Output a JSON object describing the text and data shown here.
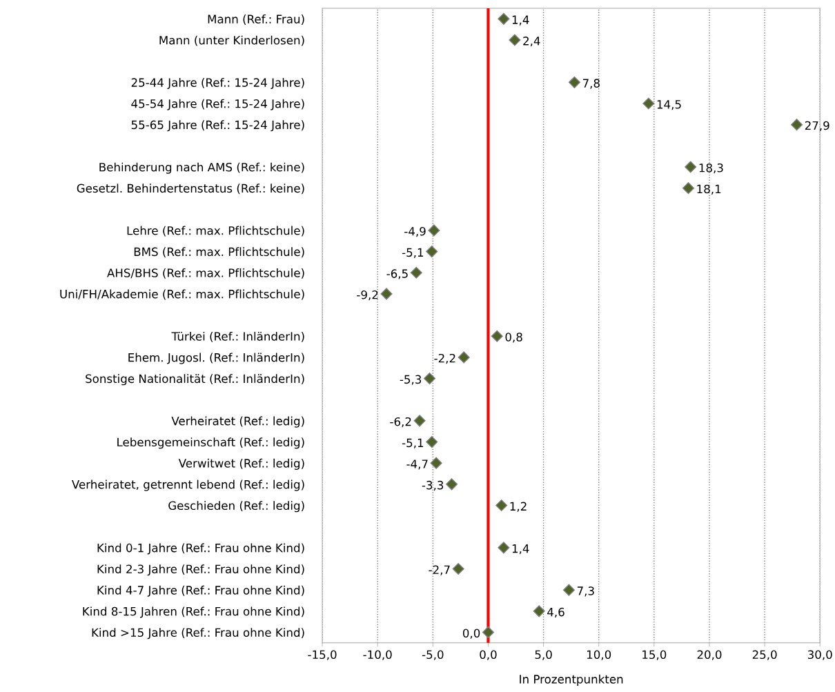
{
  "chart_data": {
    "type": "scatter",
    "orientation": "horizontal",
    "xlabel": "In Prozentpunkten",
    "categories": [
      "Mann (Ref.: Frau)",
      "Mann (unter Kinderlosen)",
      null,
      "25-44 Jahre (Ref.: 15-24 Jahre)",
      "45-54 Jahre (Ref.: 15-24 Jahre)",
      "55-65 Jahre (Ref.: 15-24 Jahre)",
      null,
      "Behinderung nach AMS (Ref.: keine)",
      "Gesetzl. Behindertenstatus (Ref.: keine)",
      null,
      "Lehre (Ref.: max. Pflichtschule)",
      "BMS (Ref.: max. Pflichtschule)",
      "AHS/BHS (Ref.: max. Pflichtschule)",
      "Uni/FH/Akademie (Ref.: max. Pflichtschule)",
      null,
      "Türkei (Ref.: InländerIn)",
      "Ehem. Jugosl. (Ref.: InländerIn)",
      "Sonstige Nationalität (Ref.: InländerIn)",
      null,
      "Verheiratet (Ref.: ledig)",
      "Lebensgemeinschaft (Ref.: ledig)",
      "Verwitwet (Ref.: ledig)",
      "Verheiratet, getrennt lebend (Ref.: ledig)",
      "Geschieden (Ref.: ledig)",
      null,
      "Kind 0-1 Jahre (Ref.: Frau ohne Kind)",
      "Kind 2-3 Jahre (Ref.: Frau ohne Kind)",
      "Kind 4-7 Jahre (Ref.: Frau ohne Kind)",
      "Kind 8-15 Jahren (Ref.: Frau ohne Kind)",
      "Kind >15 Jahre (Ref.: Frau ohne Kind)"
    ],
    "values": [
      1.4,
      2.4,
      null,
      7.8,
      14.5,
      27.9,
      null,
      18.3,
      18.1,
      null,
      -4.9,
      -5.1,
      -6.5,
      -9.2,
      null,
      0.8,
      -2.2,
      -5.3,
      null,
      -6.2,
      -5.1,
      -4.7,
      -3.3,
      1.2,
      null,
      1.4,
      -2.7,
      7.3,
      4.6,
      0.0
    ],
    "value_labels": [
      "1,4",
      "2,4",
      null,
      "7,8",
      "14,5",
      "27,9",
      null,
      "18,3",
      "18,1",
      null,
      "-4,9",
      "-5,1",
      "-6,5",
      "-9,2",
      null,
      "0,8",
      "-2,2",
      "-5,3",
      null,
      "-6,2",
      "-5,1",
      "-4,7",
      "-3,3",
      "1,2",
      null,
      "1,4",
      "-2,7",
      "7,3",
      "4,6",
      "0,0"
    ],
    "color": "#4f6228",
    "marker": "diamond",
    "xlim": [
      -15,
      30
    ],
    "xticks": [
      {
        "value": -15,
        "label": "-15,0"
      },
      {
        "value": -10,
        "label": "-10,0"
      },
      {
        "value": -5,
        "label": "-5,0"
      },
      {
        "value": 0,
        "label": "0,0"
      },
      {
        "value": 5,
        "label": "5,0"
      },
      {
        "value": 10,
        "label": "10,0"
      },
      {
        "value": 15,
        "label": "15,0"
      },
      {
        "value": 20,
        "label": "20,0"
      },
      {
        "value": 25,
        "label": "25,0"
      },
      {
        "value": 30,
        "label": "30,0"
      }
    ],
    "grid": "x",
    "legend": false,
    "ref_lines": [
      {
        "axis": "x",
        "value": 0,
        "color": "#ff0000"
      }
    ]
  }
}
